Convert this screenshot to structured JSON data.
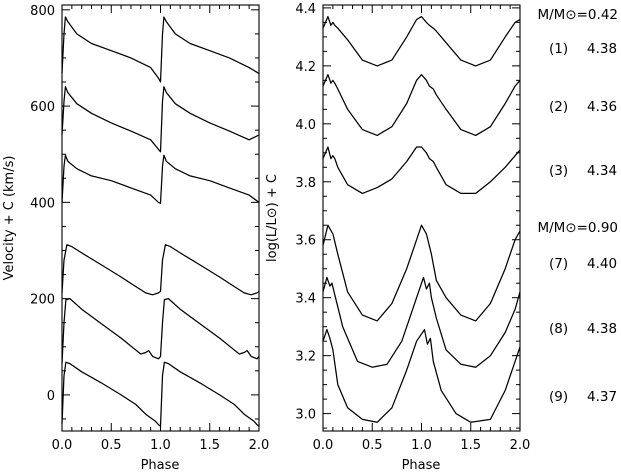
{
  "chart_data": [
    {
      "type": "line",
      "panel": "left",
      "xlabel": "Phase",
      "ylabel": "Velocity + C (km/s)",
      "xlim": [
        0.0,
        2.0
      ],
      "ylim": [
        -75,
        810
      ],
      "xticks": [
        "0.0",
        "0.5",
        "1.0",
        "1.5",
        "2.0"
      ],
      "yticks": [
        "0",
        "200",
        "400",
        "600",
        "800"
      ],
      "grid": false,
      "series": [
        {
          "x": [
            0,
            0.02,
            0.035,
            0.06,
            0.15,
            0.3,
            0.5,
            0.7,
            0.9,
            0.98,
            1.0,
            1.02,
            1.035,
            1.06,
            1.15,
            1.3,
            1.5,
            1.7,
            1.9,
            2.0
          ],
          "y": [
            668,
            750,
            785,
            775,
            750,
            730,
            715,
            700,
            680,
            658,
            650,
            750,
            785,
            775,
            750,
            730,
            715,
            700,
            680,
            668
          ]
        },
        {
          "x": [
            0,
            0.02,
            0.035,
            0.06,
            0.15,
            0.3,
            0.5,
            0.7,
            0.9,
            0.98,
            1.0,
            1.02,
            1.035,
            1.06,
            1.15,
            1.3,
            1.5,
            1.7,
            1.9,
            2.0
          ],
          "y": [
            540,
            610,
            640,
            628,
            605,
            585,
            565,
            548,
            530,
            510,
            505,
            610,
            640,
            628,
            605,
            585,
            565,
            548,
            530,
            540
          ]
        },
        {
          "x": [
            0,
            0.02,
            0.035,
            0.06,
            0.15,
            0.3,
            0.5,
            0.7,
            0.9,
            0.98,
            1.0,
            1.02,
            1.035,
            1.06,
            1.15,
            1.3,
            1.5,
            1.7,
            1.9,
            2.0
          ],
          "y": [
            400,
            475,
            498,
            485,
            470,
            455,
            445,
            430,
            415,
            400,
            398,
            475,
            498,
            485,
            470,
            455,
            445,
            430,
            415,
            400
          ]
        },
        {
          "x": [
            0,
            0.02,
            0.05,
            0.1,
            0.2,
            0.4,
            0.6,
            0.75,
            0.85,
            0.92,
            0.98,
            1.0,
            1.02,
            1.05,
            1.1,
            1.2,
            1.4,
            1.6,
            1.75,
            1.85,
            1.92,
            1.98,
            2.0
          ],
          "y": [
            212,
            280,
            312,
            308,
            295,
            270,
            245,
            225,
            212,
            208,
            212,
            215,
            280,
            312,
            308,
            295,
            270,
            245,
            225,
            212,
            208,
            212,
            215
          ]
        },
        {
          "x": [
            0,
            0.02,
            0.04,
            0.08,
            0.2,
            0.4,
            0.6,
            0.72,
            0.8,
            0.85,
            0.88,
            0.92,
            0.98,
            1.0,
            1.02,
            1.04,
            1.08,
            1.2,
            1.4,
            1.6,
            1.72,
            1.8,
            1.85,
            1.88,
            1.92,
            1.98,
            2.0
          ],
          "y": [
            65,
            150,
            198,
            200,
            178,
            148,
            118,
            98,
            85,
            88,
            92,
            80,
            75,
            80,
            150,
            198,
            200,
            178,
            148,
            118,
            98,
            85,
            88,
            92,
            80,
            75,
            80
          ]
        },
        {
          "x": [
            0,
            0.02,
            0.04,
            0.08,
            0.2,
            0.4,
            0.6,
            0.75,
            0.85,
            0.95,
            0.98,
            1.0,
            1.02,
            1.04,
            1.08,
            1.2,
            1.4,
            1.6,
            1.75,
            1.85,
            1.95,
            1.98,
            2.0
          ],
          "y": [
            -60,
            40,
            68,
            65,
            48,
            25,
            0,
            -20,
            -40,
            -55,
            -62,
            -65,
            40,
            68,
            65,
            48,
            25,
            0,
            -20,
            -40,
            -55,
            -62,
            -65
          ]
        }
      ]
    },
    {
      "type": "line",
      "panel": "right",
      "xlabel": "Phase",
      "ylabel": "log(L/L⊙) + C",
      "xlim": [
        0.0,
        2.0
      ],
      "ylim": [
        2.94,
        4.41
      ],
      "xticks": [
        "0.0",
        "0.5",
        "1.0",
        "1.5",
        "2.0"
      ],
      "yticks": [
        "3.0",
        "3.2",
        "3.4",
        "3.6",
        "3.8",
        "4.0",
        "4.2",
        "4.4"
      ],
      "grid": false,
      "series": [
        {
          "x": [
            0,
            0.05,
            0.08,
            0.1,
            0.12,
            0.15,
            0.25,
            0.4,
            0.55,
            0.7,
            0.85,
            0.95,
            1.0,
            1.05,
            1.08,
            1.12,
            1.15,
            1.25,
            1.4,
            1.55,
            1.7,
            1.85,
            1.95,
            2.0
          ],
          "y": [
            4.33,
            4.37,
            4.34,
            4.35,
            4.34,
            4.33,
            4.29,
            4.22,
            4.2,
            4.22,
            4.3,
            4.36,
            4.37,
            4.35,
            4.34,
            4.33,
            4.32,
            4.28,
            4.22,
            4.2,
            4.22,
            4.3,
            4.35,
            4.36
          ]
        },
        {
          "x": [
            0,
            0.05,
            0.08,
            0.1,
            0.12,
            0.15,
            0.25,
            0.4,
            0.55,
            0.7,
            0.85,
            0.95,
            1.0,
            1.05,
            1.08,
            1.12,
            1.15,
            1.25,
            1.4,
            1.55,
            1.7,
            1.85,
            1.95,
            2.0
          ],
          "y": [
            4.13,
            4.17,
            4.14,
            4.15,
            4.14,
            4.12,
            4.05,
            3.98,
            3.96,
            3.99,
            4.07,
            4.15,
            4.17,
            4.15,
            4.13,
            4.12,
            4.1,
            4.05,
            3.98,
            3.96,
            3.99,
            4.07,
            4.13,
            4.15
          ]
        },
        {
          "x": [
            0,
            0.05,
            0.08,
            0.1,
            0.12,
            0.15,
            0.25,
            0.4,
            0.55,
            0.7,
            0.85,
            0.95,
            1.0,
            1.05,
            1.08,
            1.12,
            1.15,
            1.25,
            1.4,
            1.55,
            1.7,
            1.85,
            1.95,
            2.0
          ],
          "y": [
            3.88,
            3.92,
            3.88,
            3.89,
            3.88,
            3.85,
            3.79,
            3.76,
            3.78,
            3.81,
            3.87,
            3.92,
            3.92,
            3.9,
            3.88,
            3.87,
            3.85,
            3.79,
            3.76,
            3.76,
            3.8,
            3.85,
            3.89,
            3.91
          ]
        },
        {
          "x": [
            0,
            0.05,
            0.1,
            0.15,
            0.25,
            0.4,
            0.55,
            0.7,
            0.85,
            0.95,
            1.0,
            1.05,
            1.1,
            1.15,
            1.25,
            1.4,
            1.55,
            1.7,
            1.85,
            1.95,
            2.0
          ],
          "y": [
            3.58,
            3.65,
            3.62,
            3.55,
            3.42,
            3.34,
            3.32,
            3.38,
            3.5,
            3.6,
            3.65,
            3.62,
            3.55,
            3.46,
            3.4,
            3.34,
            3.32,
            3.38,
            3.5,
            3.6,
            3.63
          ]
        },
        {
          "x": [
            0,
            0.04,
            0.07,
            0.09,
            0.12,
            0.2,
            0.35,
            0.5,
            0.65,
            0.8,
            0.95,
            1.02,
            1.05,
            1.08,
            1.1,
            1.15,
            1.25,
            1.4,
            1.55,
            1.7,
            1.85,
            1.95,
            2.0
          ],
          "y": [
            3.42,
            3.47,
            3.44,
            3.45,
            3.41,
            3.3,
            3.18,
            3.16,
            3.17,
            3.25,
            3.4,
            3.47,
            3.43,
            3.45,
            3.4,
            3.33,
            3.22,
            3.17,
            3.16,
            3.2,
            3.28,
            3.36,
            3.42
          ]
        },
        {
          "x": [
            0,
            0.04,
            0.07,
            0.1,
            0.15,
            0.25,
            0.4,
            0.55,
            0.7,
            0.85,
            0.95,
            1.03,
            1.06,
            1.09,
            1.12,
            1.2,
            1.35,
            1.5,
            1.7,
            1.85,
            1.95,
            2.0
          ],
          "y": [
            3.25,
            3.29,
            3.26,
            3.22,
            3.1,
            3.02,
            2.98,
            2.97,
            3.02,
            3.15,
            3.25,
            3.29,
            3.24,
            3.26,
            3.18,
            3.08,
            3.0,
            2.97,
            2.98,
            3.08,
            3.18,
            3.23
          ]
        }
      ]
    }
  ],
  "annotations": {
    "group1_header": "M/M⊙=0.42",
    "group2_header": "M/M⊙=0.90",
    "models": [
      {
        "id": "(1)",
        "value": "4.38"
      },
      {
        "id": "(2)",
        "value": "4.36"
      },
      {
        "id": "(3)",
        "value": "4.34"
      },
      {
        "id": "(7)",
        "value": "4.40"
      },
      {
        "id": "(8)",
        "value": "4.38"
      },
      {
        "id": "(9)",
        "value": "4.37"
      }
    ]
  }
}
